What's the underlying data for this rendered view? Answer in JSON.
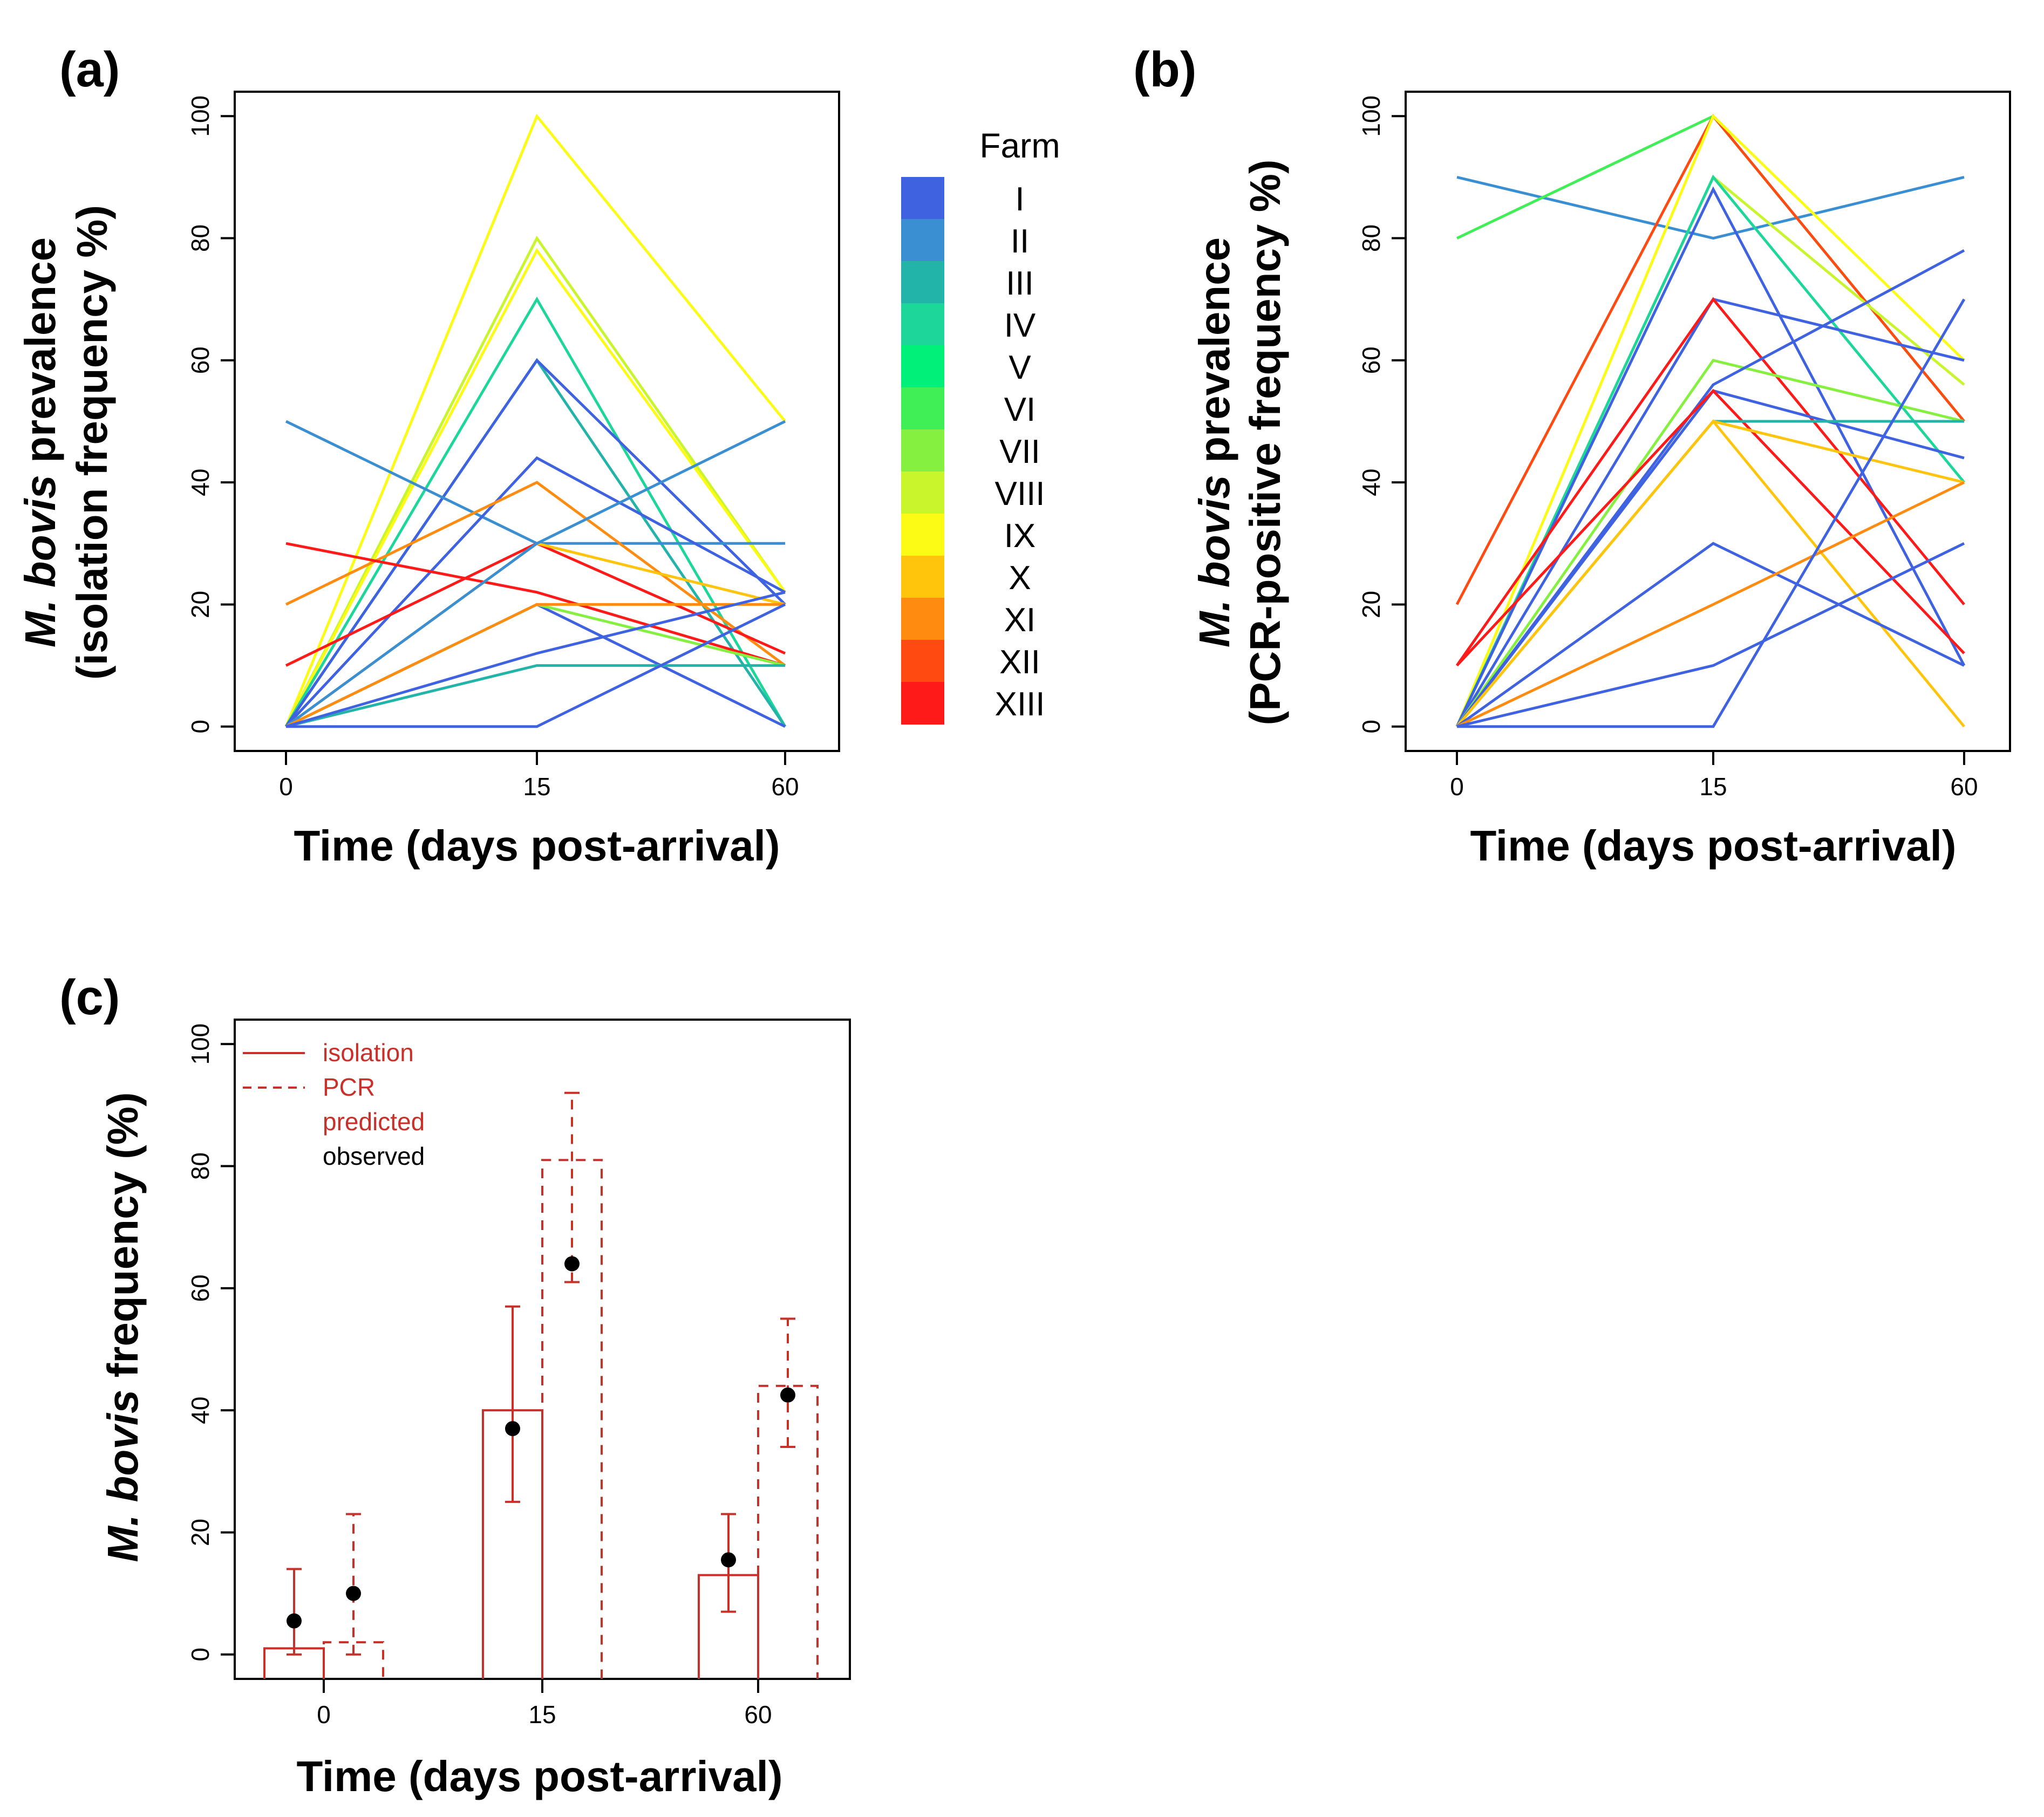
{
  "panels": {
    "a": {
      "label": "(a)",
      "ylabel_line1_italic": "M. bovis",
      "ylabel_line1_rest": " prevalence",
      "ylabel_line2": "(isolation frequency %)",
      "xlabel": "Time (days post-arrival)"
    },
    "b": {
      "label": "(b)",
      "ylabel_line1_italic": "M. bovis",
      "ylabel_line1_rest": " prevalence",
      "ylabel_line2": "(PCR-positive frequency %)",
      "xlabel": "Time (days post-arrival)"
    },
    "c": {
      "label": "(c)",
      "ylabel_italic": "M. bovis",
      "ylabel_rest": " frequency (%)",
      "xlabel": "Time (days post-arrival)"
    }
  },
  "legend": {
    "title": "Farm",
    "farms": [
      "I",
      "II",
      "III",
      "IV",
      "V",
      "VI",
      "VII",
      "VIII",
      "IX",
      "X",
      "XI",
      "XII",
      "XIII"
    ],
    "colors": [
      "#3f63e0",
      "#3a8ed2",
      "#22b4a8",
      "#1cd69a",
      "#00f07a",
      "#40ee55",
      "#86f040",
      "#c8f52c",
      "#fbfb16",
      "#ffc40c",
      "#ff8c10",
      "#ff4a12",
      "#ff1a1a"
    ]
  },
  "chart_data": [
    {
      "id": "a",
      "type": "line",
      "title": "(a)",
      "xlabel": "Time (days post-arrival)",
      "ylabel": "M. bovis prevalence (isolation frequency %)",
      "categories": [
        "0",
        "15",
        "60"
      ],
      "yticks": [
        "0",
        "20",
        "40",
        "60",
        "80",
        "100"
      ],
      "ylim": [
        -4,
        104
      ],
      "series": [
        {
          "color": "#fbfb16",
          "values": [
            0,
            100,
            50
          ]
        },
        {
          "color": "#c8f52c",
          "values": [
            0,
            80,
            22
          ]
        },
        {
          "color": "#fbfb16",
          "values": [
            0,
            78,
            22
          ]
        },
        {
          "color": "#1cd69a",
          "values": [
            0,
            70,
            0
          ]
        },
        {
          "color": "#22b4a8",
          "values": [
            0,
            60,
            0
          ]
        },
        {
          "color": "#3f63e0",
          "values": [
            0,
            60,
            20
          ]
        },
        {
          "color": "#3a8ed2",
          "values": [
            50,
            30,
            30
          ]
        },
        {
          "color": "#3f63e0",
          "values": [
            0,
            44,
            22
          ]
        },
        {
          "color": "#ff8c10",
          "values": [
            20,
            40,
            10
          ]
        },
        {
          "color": "#ff1a1a",
          "values": [
            30,
            22,
            10
          ]
        },
        {
          "color": "#ff1a1a",
          "values": [
            10,
            30,
            12
          ]
        },
        {
          "color": "#ffc40c",
          "values": [
            0,
            30,
            20
          ]
        },
        {
          "color": "#3a8ed2",
          "values": [
            0,
            30,
            50
          ]
        },
        {
          "color": "#3f63e0",
          "values": [
            0,
            20,
            0
          ]
        },
        {
          "color": "#86f040",
          "values": [
            0,
            20,
            10
          ]
        },
        {
          "color": "#ff8c10",
          "values": [
            0,
            20,
            20
          ]
        },
        {
          "color": "#22b4a8",
          "values": [
            0,
            10,
            10
          ]
        },
        {
          "color": "#3f63e0",
          "values": [
            0,
            12,
            22
          ]
        },
        {
          "color": "#3f63e0",
          "values": [
            0,
            0,
            20
          ]
        }
      ]
    },
    {
      "id": "b",
      "type": "line",
      "title": "(b)",
      "xlabel": "Time (days post-arrival)",
      "ylabel": "M. bovis prevalence (PCR-positive frequency %)",
      "categories": [
        "0",
        "15",
        "60"
      ],
      "yticks": [
        "0",
        "20",
        "40",
        "60",
        "80",
        "100"
      ],
      "ylim": [
        -4,
        104
      ],
      "series": [
        {
          "color": "#3a8ed2",
          "values": [
            90,
            80,
            90
          ]
        },
        {
          "color": "#40ee55",
          "values": [
            80,
            100,
            50
          ]
        },
        {
          "color": "#ff4a12",
          "values": [
            20,
            100,
            50
          ]
        },
        {
          "color": "#fbfb16",
          "values": [
            0,
            100,
            60
          ]
        },
        {
          "color": "#c8f52c",
          "values": [
            0,
            90,
            56
          ]
        },
        {
          "color": "#1cd69a",
          "values": [
            0,
            90,
            40
          ]
        },
        {
          "color": "#3f63e0",
          "values": [
            0,
            88,
            10
          ]
        },
        {
          "color": "#3f63e0",
          "values": [
            0,
            70,
            60
          ]
        },
        {
          "color": "#ff1a1a",
          "values": [
            10,
            70,
            20
          ]
        },
        {
          "color": "#86f040",
          "values": [
            0,
            60,
            50
          ]
        },
        {
          "color": "#3f63e0",
          "values": [
            0,
            56,
            78
          ]
        },
        {
          "color": "#3f63e0",
          "values": [
            0,
            55,
            44
          ]
        },
        {
          "color": "#ff1a1a",
          "values": [
            10,
            55,
            12
          ]
        },
        {
          "color": "#22b4a8",
          "values": [
            0,
            50,
            50
          ]
        },
        {
          "color": "#ffc40c",
          "values": [
            0,
            50,
            0
          ]
        },
        {
          "color": "#ffc40c",
          "values": [
            0,
            50,
            40
          ]
        },
        {
          "color": "#3f63e0",
          "values": [
            0,
            30,
            10
          ]
        },
        {
          "color": "#ff8c10",
          "values": [
            0,
            20,
            40
          ]
        },
        {
          "color": "#3f63e0",
          "values": [
            0,
            10,
            30
          ]
        },
        {
          "color": "#3f63e0",
          "values": [
            0,
            0,
            70
          ]
        }
      ]
    },
    {
      "id": "c",
      "type": "bar",
      "title": "(c)",
      "xlabel": "Time (days post-arrival)",
      "ylabel": "M. bovis frequency (%)",
      "categories": [
        "0",
        "15",
        "60"
      ],
      "yticks": [
        "0",
        "20",
        "40",
        "60",
        "80",
        "100"
      ],
      "ylim": [
        -4,
        104
      ],
      "legend": [
        {
          "label": "isolation",
          "color": "#c8302a",
          "line": "solid"
        },
        {
          "label": "PCR",
          "color": "#c8302a",
          "line": "dashed"
        },
        {
          "label": "predicted",
          "color": "#c8302a",
          "line": "none"
        },
        {
          "label": "observed",
          "color": "#000000",
          "line": "none"
        }
      ],
      "series": [
        {
          "name": "isolation",
          "predicted": [
            1,
            40,
            13
          ],
          "ci_low": [
            0,
            25,
            7
          ],
          "ci_high": [
            14,
            57,
            23
          ],
          "observed": [
            5.5,
            37,
            15.5
          ]
        },
        {
          "name": "PCR",
          "predicted": [
            2,
            81,
            44
          ],
          "ci_low": [
            0,
            61,
            34
          ],
          "ci_high": [
            23,
            92,
            55
          ],
          "observed": [
            10,
            64,
            42.5
          ]
        }
      ]
    }
  ]
}
